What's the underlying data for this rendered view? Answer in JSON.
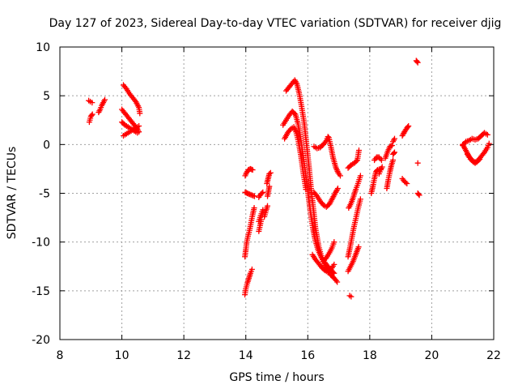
{
  "chart_data": {
    "type": "scatter",
    "title": "Day 127 of 2023, Sidereal Day-to-day VTEC variation (SDTVAR) for receiver djig",
    "xlabel": "GPS time / hours",
    "ylabel": "SDTVAR / TECUs",
    "xlim": [
      8,
      22
    ],
    "ylim": [
      -20,
      10
    ],
    "x_ticks": [
      8,
      10,
      12,
      14,
      16,
      18,
      20,
      22
    ],
    "x_tick_labels": [
      "8",
      "10",
      "12",
      "14",
      "16",
      "18",
      "20",
      "22"
    ],
    "y_ticks": [
      -20,
      -15,
      -10,
      -5,
      0,
      5,
      10
    ],
    "y_tick_labels": [
      "-20",
      "-15",
      "-10",
      "-5",
      "0",
      "5",
      "10"
    ],
    "grid": true,
    "marker": "plus",
    "color": "#ff0000",
    "tracks": [
      [
        [
          8.95,
          2.3
        ],
        [
          9.0,
          2.9
        ],
        [
          9.05,
          3.1
        ]
      ],
      [
        [
          8.93,
          4.5
        ],
        [
          8.98,
          4.4
        ],
        [
          9.04,
          4.3
        ]
      ],
      [
        [
          9.25,
          3.3
        ],
        [
          9.3,
          3.6
        ],
        [
          9.35,
          4.0
        ],
        [
          9.4,
          4.3
        ],
        [
          9.45,
          4.6
        ]
      ],
      [
        [
          10.05,
          6.1
        ],
        [
          10.15,
          5.7
        ],
        [
          10.25,
          5.2
        ],
        [
          10.35,
          4.8
        ],
        [
          10.45,
          4.4
        ],
        [
          10.55,
          3.8
        ],
        [
          10.58,
          3.2
        ]
      ],
      [
        [
          10.0,
          3.6
        ],
        [
          10.1,
          3.2
        ],
        [
          10.2,
          2.8
        ],
        [
          10.3,
          2.4
        ],
        [
          10.4,
          2.0
        ],
        [
          10.5,
          1.6
        ],
        [
          10.55,
          1.3
        ]
      ],
      [
        [
          10.0,
          2.3
        ],
        [
          10.1,
          2.0
        ],
        [
          10.2,
          1.8
        ],
        [
          10.3,
          1.6
        ],
        [
          10.4,
          1.4
        ],
        [
          10.5,
          1.2
        ]
      ],
      [
        [
          10.05,
          0.9
        ],
        [
          10.15,
          1.1
        ],
        [
          10.25,
          1.3
        ],
        [
          10.35,
          1.5
        ],
        [
          10.45,
          1.7
        ],
        [
          10.55,
          1.9
        ]
      ],
      [
        [
          13.97,
          -15.4
        ],
        [
          14.0,
          -14.8
        ],
        [
          14.05,
          -14.2
        ],
        [
          14.1,
          -13.7
        ],
        [
          14.15,
          -13.2
        ],
        [
          14.2,
          -12.8
        ]
      ],
      [
        [
          13.97,
          -11.5
        ],
        [
          14.0,
          -10.8
        ],
        [
          14.03,
          -10.0
        ],
        [
          14.07,
          -9.4
        ],
        [
          14.12,
          -8.8
        ],
        [
          14.17,
          -8.0
        ],
        [
          14.22,
          -7.2
        ],
        [
          14.27,
          -6.5
        ]
      ],
      [
        [
          13.98,
          -3.2
        ],
        [
          14.02,
          -2.9
        ],
        [
          14.08,
          -2.6
        ],
        [
          14.15,
          -2.5
        ],
        [
          14.22,
          -2.6
        ]
      ],
      [
        [
          13.98,
          -4.9
        ],
        [
          14.05,
          -5.0
        ],
        [
          14.12,
          -5.1
        ],
        [
          14.2,
          -5.2
        ],
        [
          14.28,
          -5.3
        ]
      ],
      [
        [
          14.42,
          -8.9
        ],
        [
          14.46,
          -8.3
        ],
        [
          14.5,
          -7.7
        ]
      ],
      [
        [
          14.42,
          -7.9
        ],
        [
          14.48,
          -7.3
        ],
        [
          14.55,
          -6.7
        ]
      ],
      [
        [
          14.42,
          -5.4
        ],
        [
          14.48,
          -5.1
        ],
        [
          14.55,
          -4.9
        ]
      ],
      [
        [
          14.6,
          -7.4
        ],
        [
          14.65,
          -6.8
        ],
        [
          14.7,
          -6.3
        ]
      ],
      [
        [
          14.7,
          -5.3
        ],
        [
          14.73,
          -4.8
        ],
        [
          14.76,
          -4.3
        ]
      ],
      [
        [
          14.68,
          -4.0
        ],
        [
          14.72,
          -3.5
        ],
        [
          14.76,
          -3.0
        ],
        [
          14.8,
          -2.9
        ]
      ],
      [
        [
          15.3,
          5.5
        ],
        [
          15.4,
          5.9
        ],
        [
          15.5,
          6.3
        ],
        [
          15.58,
          6.6
        ],
        [
          15.65,
          6.2
        ],
        [
          15.72,
          5.3
        ],
        [
          15.8,
          3.9
        ],
        [
          15.88,
          2.3
        ],
        [
          15.95,
          0.3
        ],
        [
          16.03,
          -2.0
        ],
        [
          16.1,
          -4.3
        ],
        [
          16.18,
          -6.6
        ],
        [
          16.25,
          -8.6
        ],
        [
          16.35,
          -10.4
        ],
        [
          16.45,
          -11.6
        ],
        [
          16.55,
          -12.4
        ],
        [
          16.65,
          -13.0
        ],
        [
          16.75,
          -13.4
        ],
        [
          16.85,
          -13.7
        ],
        [
          16.95,
          -14.1
        ]
      ],
      [
        [
          15.2,
          2.0
        ],
        [
          15.3,
          2.5
        ],
        [
          15.4,
          3.0
        ],
        [
          15.5,
          3.4
        ],
        [
          15.6,
          3.1
        ],
        [
          15.68,
          2.2
        ],
        [
          15.76,
          0.8
        ],
        [
          15.84,
          -0.9
        ],
        [
          15.92,
          -2.8
        ],
        [
          16.0,
          -4.8
        ],
        [
          16.08,
          -6.8
        ],
        [
          16.16,
          -8.5
        ],
        [
          16.24,
          -9.8
        ],
        [
          16.34,
          -10.9
        ],
        [
          16.44,
          -11.6
        ],
        [
          16.55,
          -12.1
        ],
        [
          16.65,
          -12.5
        ],
        [
          16.75,
          -12.9
        ],
        [
          16.85,
          -13.2
        ]
      ],
      [
        [
          15.25,
          0.6
        ],
        [
          15.35,
          1.2
        ],
        [
          15.45,
          1.6
        ],
        [
          15.55,
          1.8
        ],
        [
          15.62,
          1.3
        ],
        [
          15.7,
          0.3
        ],
        [
          15.78,
          -1.2
        ],
        [
          15.86,
          -3.0
        ],
        [
          15.94,
          -4.6
        ]
      ],
      [
        [
          16.15,
          -11.3
        ],
        [
          16.25,
          -11.8
        ],
        [
          16.35,
          -12.2
        ],
        [
          16.45,
          -12.6
        ],
        [
          16.55,
          -12.9
        ],
        [
          16.65,
          -13.1
        ],
        [
          16.75,
          -12.8
        ],
        [
          16.85,
          -12.3
        ]
      ],
      [
        [
          16.5,
          -12.0
        ],
        [
          16.6,
          -11.6
        ],
        [
          16.7,
          -11.1
        ],
        [
          16.78,
          -10.6
        ],
        [
          16.85,
          -10.0
        ]
      ],
      [
        [
          16.2,
          -0.2
        ],
        [
          16.3,
          -0.4
        ],
        [
          16.4,
          -0.3
        ],
        [
          16.5,
          0.0
        ],
        [
          16.6,
          0.4
        ],
        [
          16.65,
          0.8
        ]
      ],
      [
        [
          16.2,
          -4.9
        ],
        [
          16.3,
          -5.3
        ],
        [
          16.4,
          -5.8
        ],
        [
          16.5,
          -6.2
        ],
        [
          16.6,
          -6.4
        ],
        [
          16.7,
          -6.1
        ],
        [
          16.8,
          -5.5
        ],
        [
          16.9,
          -4.9
        ],
        [
          16.97,
          -4.5
        ]
      ],
      [
        [
          16.68,
          0.7
        ],
        [
          16.75,
          -0.3
        ],
        [
          16.82,
          -1.4
        ],
        [
          16.9,
          -2.3
        ],
        [
          16.98,
          -2.9
        ],
        [
          17.05,
          -3.2
        ]
      ],
      [
        [
          17.35,
          -15.5
        ],
        [
          17.4,
          -15.6
        ]
      ],
      [
        [
          17.3,
          -13.0
        ],
        [
          17.38,
          -12.5
        ],
        [
          17.46,
          -12.0
        ],
        [
          17.52,
          -11.5
        ],
        [
          17.58,
          -11.0
        ],
        [
          17.64,
          -10.5
        ]
      ],
      [
        [
          17.3,
          -11.5
        ],
        [
          17.36,
          -10.6
        ],
        [
          17.42,
          -9.6
        ],
        [
          17.48,
          -8.6
        ],
        [
          17.55,
          -7.6
        ],
        [
          17.62,
          -6.6
        ],
        [
          17.7,
          -5.6
        ]
      ],
      [
        [
          17.32,
          -6.5
        ],
        [
          17.4,
          -6.0
        ],
        [
          17.48,
          -5.3
        ],
        [
          17.55,
          -4.6
        ],
        [
          17.62,
          -4.0
        ],
        [
          17.7,
          -3.2
        ]
      ],
      [
        [
          17.3,
          -2.4
        ],
        [
          17.4,
          -2.1
        ],
        [
          17.5,
          -1.9
        ],
        [
          17.6,
          -1.6
        ],
        [
          17.65,
          -0.6
        ]
      ],
      [
        [
          18.05,
          -5.0
        ],
        [
          18.1,
          -4.3
        ],
        [
          18.15,
          -3.5
        ],
        [
          18.2,
          -2.8
        ],
        [
          18.25,
          -2.6
        ],
        [
          18.35,
          -2.5
        ]
      ],
      [
        [
          18.15,
          -1.6
        ],
        [
          18.22,
          -1.3
        ],
        [
          18.3,
          -1.3
        ],
        [
          18.38,
          -1.6
        ]
      ],
      [
        [
          18.3,
          -3.0
        ],
        [
          18.35,
          -2.6
        ],
        [
          18.4,
          -2.3
        ]
      ],
      [
        [
          18.55,
          -4.5
        ],
        [
          18.6,
          -3.6
        ],
        [
          18.65,
          -2.8
        ],
        [
          18.7,
          -2.1
        ],
        [
          18.75,
          -1.6
        ]
      ],
      [
        [
          18.5,
          -1.4
        ],
        [
          18.58,
          -0.7
        ],
        [
          18.65,
          -0.2
        ],
        [
          18.72,
          -0.1
        ]
      ],
      [
        [
          18.75,
          0.3
        ],
        [
          18.8,
          0.6
        ]
      ],
      [
        [
          18.75,
          -1.0
        ],
        [
          18.8,
          -0.8
        ]
      ],
      [
        [
          19.05,
          0.9
        ],
        [
          19.12,
          1.3
        ],
        [
          19.2,
          1.7
        ],
        [
          19.25,
          1.9
        ]
      ],
      [
        [
          19.05,
          -3.5
        ],
        [
          19.12,
          -3.8
        ],
        [
          19.2,
          -4.0
        ]
      ],
      [
        [
          19.5,
          8.6
        ],
        [
          19.55,
          8.4
        ]
      ],
      [
        [
          19.55,
          -1.9
        ]
      ],
      [
        [
          19.55,
          -5.0
        ],
        [
          19.6,
          -5.2
        ]
      ],
      [
        [
          21.0,
          -0.1
        ],
        [
          21.1,
          0.3
        ],
        [
          21.2,
          0.4
        ],
        [
          21.3,
          0.6
        ],
        [
          21.4,
          0.5
        ],
        [
          21.5,
          0.6
        ],
        [
          21.6,
          0.9
        ],
        [
          21.7,
          1.2
        ],
        [
          21.8,
          1.0
        ]
      ],
      [
        [
          21.0,
          0.0
        ],
        [
          21.1,
          -0.6
        ],
        [
          21.2,
          -1.2
        ],
        [
          21.3,
          -1.6
        ],
        [
          21.4,
          -1.9
        ],
        [
          21.5,
          -1.6
        ],
        [
          21.6,
          -1.2
        ],
        [
          21.7,
          -0.8
        ],
        [
          21.8,
          -0.3
        ],
        [
          21.85,
          0.1
        ]
      ],
      [
        [
          21.15,
          -1.0
        ],
        [
          21.25,
          -1.5
        ],
        [
          21.35,
          -1.8
        ],
        [
          21.45,
          -1.8
        ],
        [
          21.55,
          -1.5
        ]
      ]
    ]
  }
}
